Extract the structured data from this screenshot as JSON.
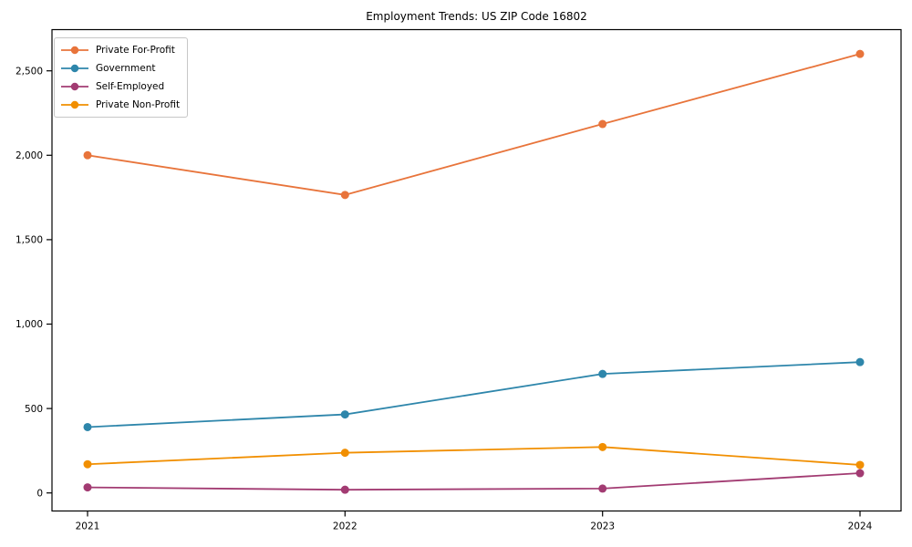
{
  "chart_data": {
    "type": "line",
    "title": "Employment Trends: US ZIP Code 16802",
    "xlabel": "",
    "ylabel": "",
    "x": [
      2021,
      2022,
      2023,
      2024
    ],
    "xtick_labels": [
      "2021",
      "2022",
      "2023",
      "2024"
    ],
    "yticks": [
      0,
      500,
      1000,
      1500,
      2000,
      2500
    ],
    "ytick_labels": [
      "0",
      "500",
      "1,000",
      "1,500",
      "2,000",
      "2,500"
    ],
    "ylim": [
      -105,
      2745
    ],
    "grid": false,
    "marker": "circle",
    "legend_position": "upper-left",
    "axis_color": "#000000",
    "series": [
      {
        "name": "Private For-Profit",
        "color": "#E8743B",
        "values": [
          2000,
          1765,
          2185,
          2600
        ]
      },
      {
        "name": "Government",
        "color": "#2E86AB",
        "values": [
          390,
          465,
          705,
          775
        ]
      },
      {
        "name": "Self-Employed",
        "color": "#A23B72",
        "values": [
          33,
          19,
          26,
          117
        ]
      },
      {
        "name": "Private Non-Profit",
        "color": "#F18F01",
        "values": [
          170,
          238,
          272,
          166
        ]
      }
    ]
  }
}
